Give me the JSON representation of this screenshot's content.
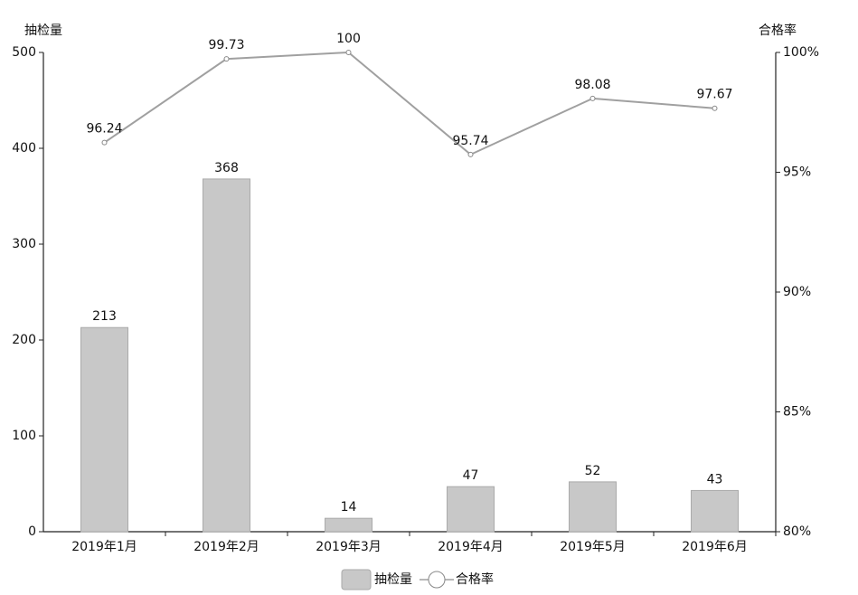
{
  "chart_data": {
    "type": "bar",
    "y_label": "抽检量",
    "y2_label": "合格率",
    "categories": [
      "2019年1月",
      "2019年2月",
      "2019年3月",
      "2019年4月",
      "2019年5月",
      "2019年6月"
    ],
    "series": [
      {
        "name": "抽检量",
        "type": "bar",
        "color": "#c8c8c8",
        "values": [
          213,
          368,
          14,
          47,
          52,
          43
        ]
      },
      {
        "name": "合格率",
        "type": "line",
        "axis": "y2",
        "color": "#a0a0a0",
        "values": [
          96.24,
          99.73,
          100,
          95.74,
          98.08,
          97.67
        ]
      }
    ],
    "ylim": [
      0,
      500
    ],
    "yticks": [
      0,
      100,
      200,
      300,
      400,
      500
    ],
    "y2lim": [
      80,
      100
    ],
    "y2ticks": [
      {
        "value": 80,
        "label": "80%"
      },
      {
        "value": 85,
        "label": "85%"
      },
      {
        "value": 90,
        "label": "90%"
      },
      {
        "value": 95,
        "label": "95%"
      },
      {
        "value": 100,
        "label": "100%"
      }
    ],
    "legend": "bottom"
  }
}
